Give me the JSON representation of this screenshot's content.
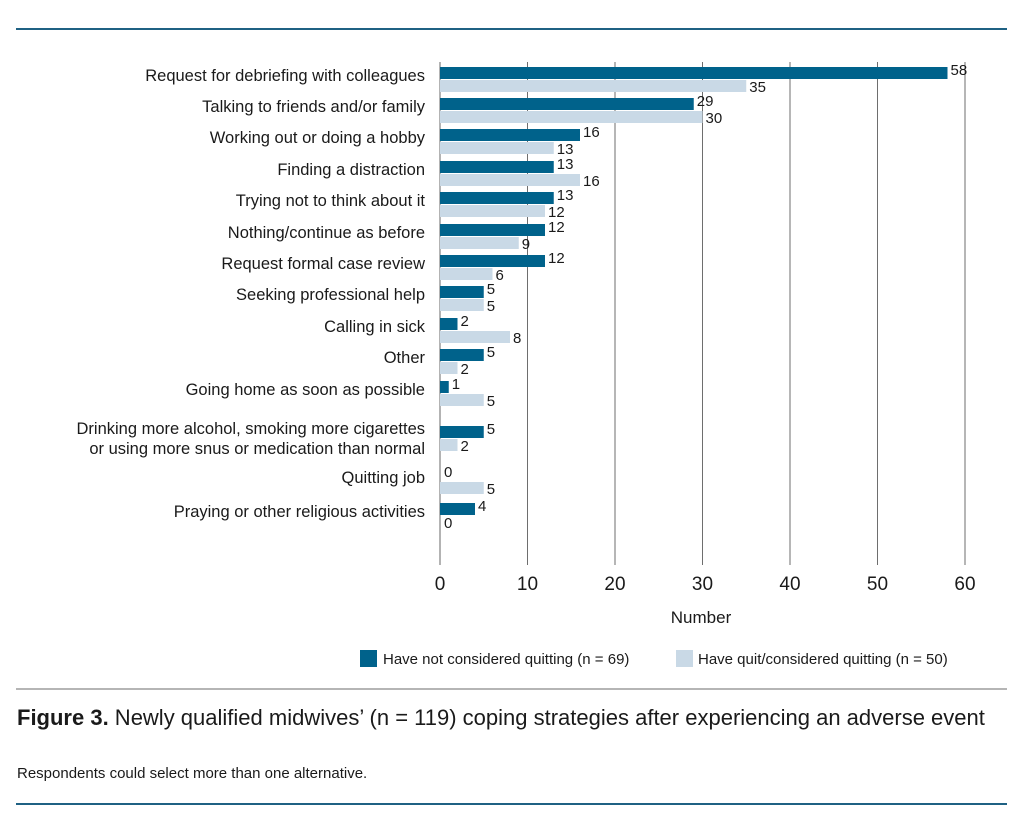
{
  "chart_data": {
    "type": "bar",
    "orientation": "horizontal",
    "categories": [
      [
        "Request for debriefing with colleagues"
      ],
      [
        "Talking to friends and/or family"
      ],
      [
        "Working out or doing a hobby"
      ],
      [
        "Finding a distraction"
      ],
      [
        "Trying not to think about it"
      ],
      [
        "Nothing/continue as before"
      ],
      [
        "Request formal case review"
      ],
      [
        "Seeking professional help"
      ],
      [
        "Calling in sick"
      ],
      [
        "Other"
      ],
      [
        "Going home as soon as possible"
      ],
      [
        "Drinking more alcohol, smoking more cigarettes",
        "or using more snus or medication than normal"
      ],
      [
        "Quitting job"
      ],
      [
        "Praying or other religious activities"
      ]
    ],
    "series": [
      {
        "name": "Have not considered quitting (n = 69)",
        "color": "#00628b",
        "values": [
          58,
          29,
          16,
          13,
          13,
          12,
          12,
          5,
          2,
          5,
          1,
          5,
          0,
          4
        ]
      },
      {
        "name": "Have quit/considered quitting (n = 50)",
        "color": "#c9d9e6",
        "values": [
          35,
          30,
          13,
          16,
          12,
          9,
          6,
          5,
          8,
          2,
          5,
          2,
          5,
          0
        ]
      }
    ],
    "xlabel": "Number",
    "xlim": [
      0,
      60
    ],
    "xticks": [
      "0",
      "10",
      "20",
      "30",
      "40",
      "50",
      "60"
    ],
    "grid": "vertical",
    "legend": "bottom-right"
  },
  "caption": {
    "label": "Figure 3.",
    "text": " Newly qualified midwives’ (n = 119) coping strategies after experiencing an adverse event",
    "note": "Respondents could select more than one alternative."
  },
  "colors": {
    "rule": "#1f6183",
    "accent": "#00628b",
    "light": "#c9d9e6"
  }
}
